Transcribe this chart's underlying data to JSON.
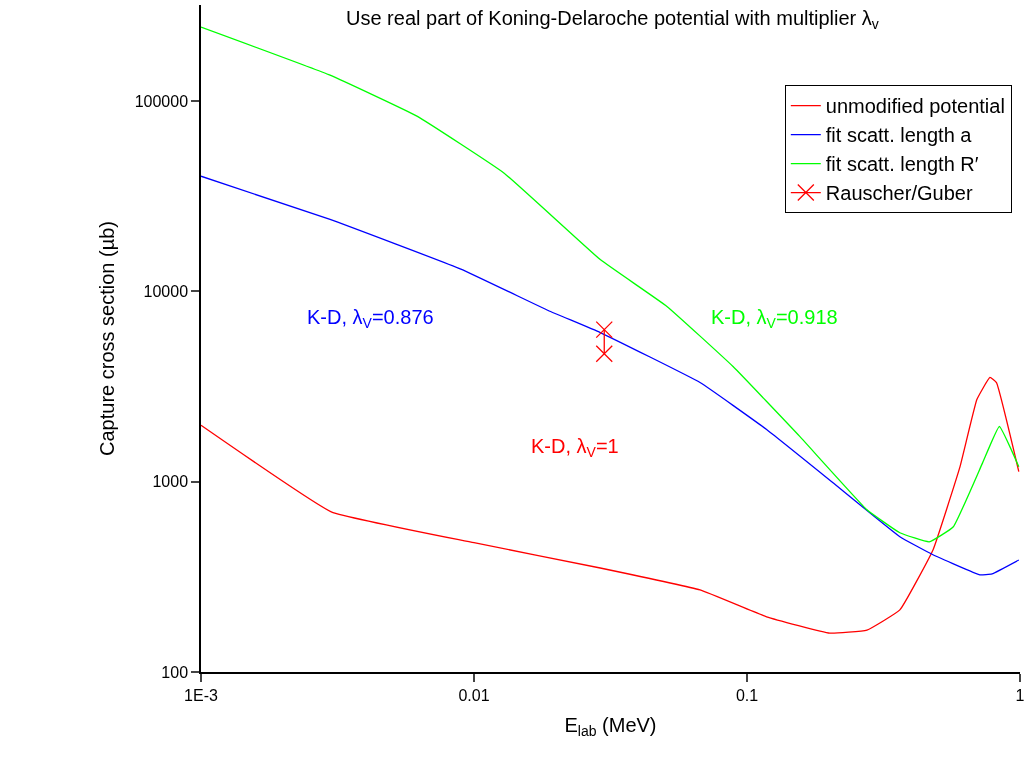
{
  "chart_data": {
    "type": "line",
    "title": "Use real part of Koning-Delaroche potential with multiplier λ$_{v}$",
    "xlabel": "E$_{lab}$ (MeV)",
    "ylabel": "Capture cross section (µb)",
    "log": "xy",
    "xlim": [
      0.001,
      1
    ],
    "ylim": [
      100,
      320000
    ],
    "xticks": [
      {
        "value": 0.001,
        "label": "1E-3"
      },
      0.01,
      0.1,
      1
    ],
    "yticks": [
      100,
      1000,
      10000,
      100000
    ],
    "legend": "top right",
    "line_style": "solid",
    "series": [
      {
        "name": "unmodified potential",
        "color": "#ff0000",
        "x": [
          0.001,
          0.003,
          0.01,
          0.029,
          0.0673,
          0.118,
          0.201,
          0.275,
          0.363,
          0.48,
          0.603,
          0.695,
          0.776,
          0.82,
          0.99
        ],
        "values": [
          1980,
          695,
          478,
          352,
          270,
          195,
          160,
          166,
          212,
          438,
          1200,
          2700,
          3530,
          3320,
          1130
        ]
      },
      {
        "name": "fit scatt. length a",
        "color": "#0000ff",
        "x": [
          0.001,
          0.00297,
          0.00895,
          0.0187,
          0.029,
          0.0673,
          0.118,
          0.206,
          0.363,
          0.48,
          0.713,
          0.79,
          0.99
        ],
        "values": [
          40300,
          23900,
          13100,
          7940,
          6080,
          3320,
          1880,
          990,
          514,
          413,
          324,
          328,
          388
        ]
      },
      {
        "name": "fit scatt. length R′",
        "color": "#00ff00",
        "x": [
          0.001,
          0.00297,
          0.00618,
          0.0129,
          0.029,
          0.0509,
          0.0889,
          0.156,
          0.275,
          0.363,
          0.465,
          0.57,
          0.73,
          0.84,
          0.99
        ],
        "values": [
          245000,
          137000,
          83400,
          41800,
          14700,
          8340,
          4030,
          1730,
          712,
          539,
          483,
          580,
          1260,
          1950,
          1200
        ]
      },
      {
        "name": "Rauscher/Guber",
        "color": "#ff0000",
        "type": "line",
        "marker": "cross",
        "x": [
          0.03,
          0.03
        ],
        "values": [
          6300,
          4700
        ]
      }
    ],
    "annotations": [
      "K-D, λ$_{V}$=1",
      "K-D, λ$_{V}$=0.876",
      "K-D, λ$_{V}$=0.918"
    ]
  }
}
